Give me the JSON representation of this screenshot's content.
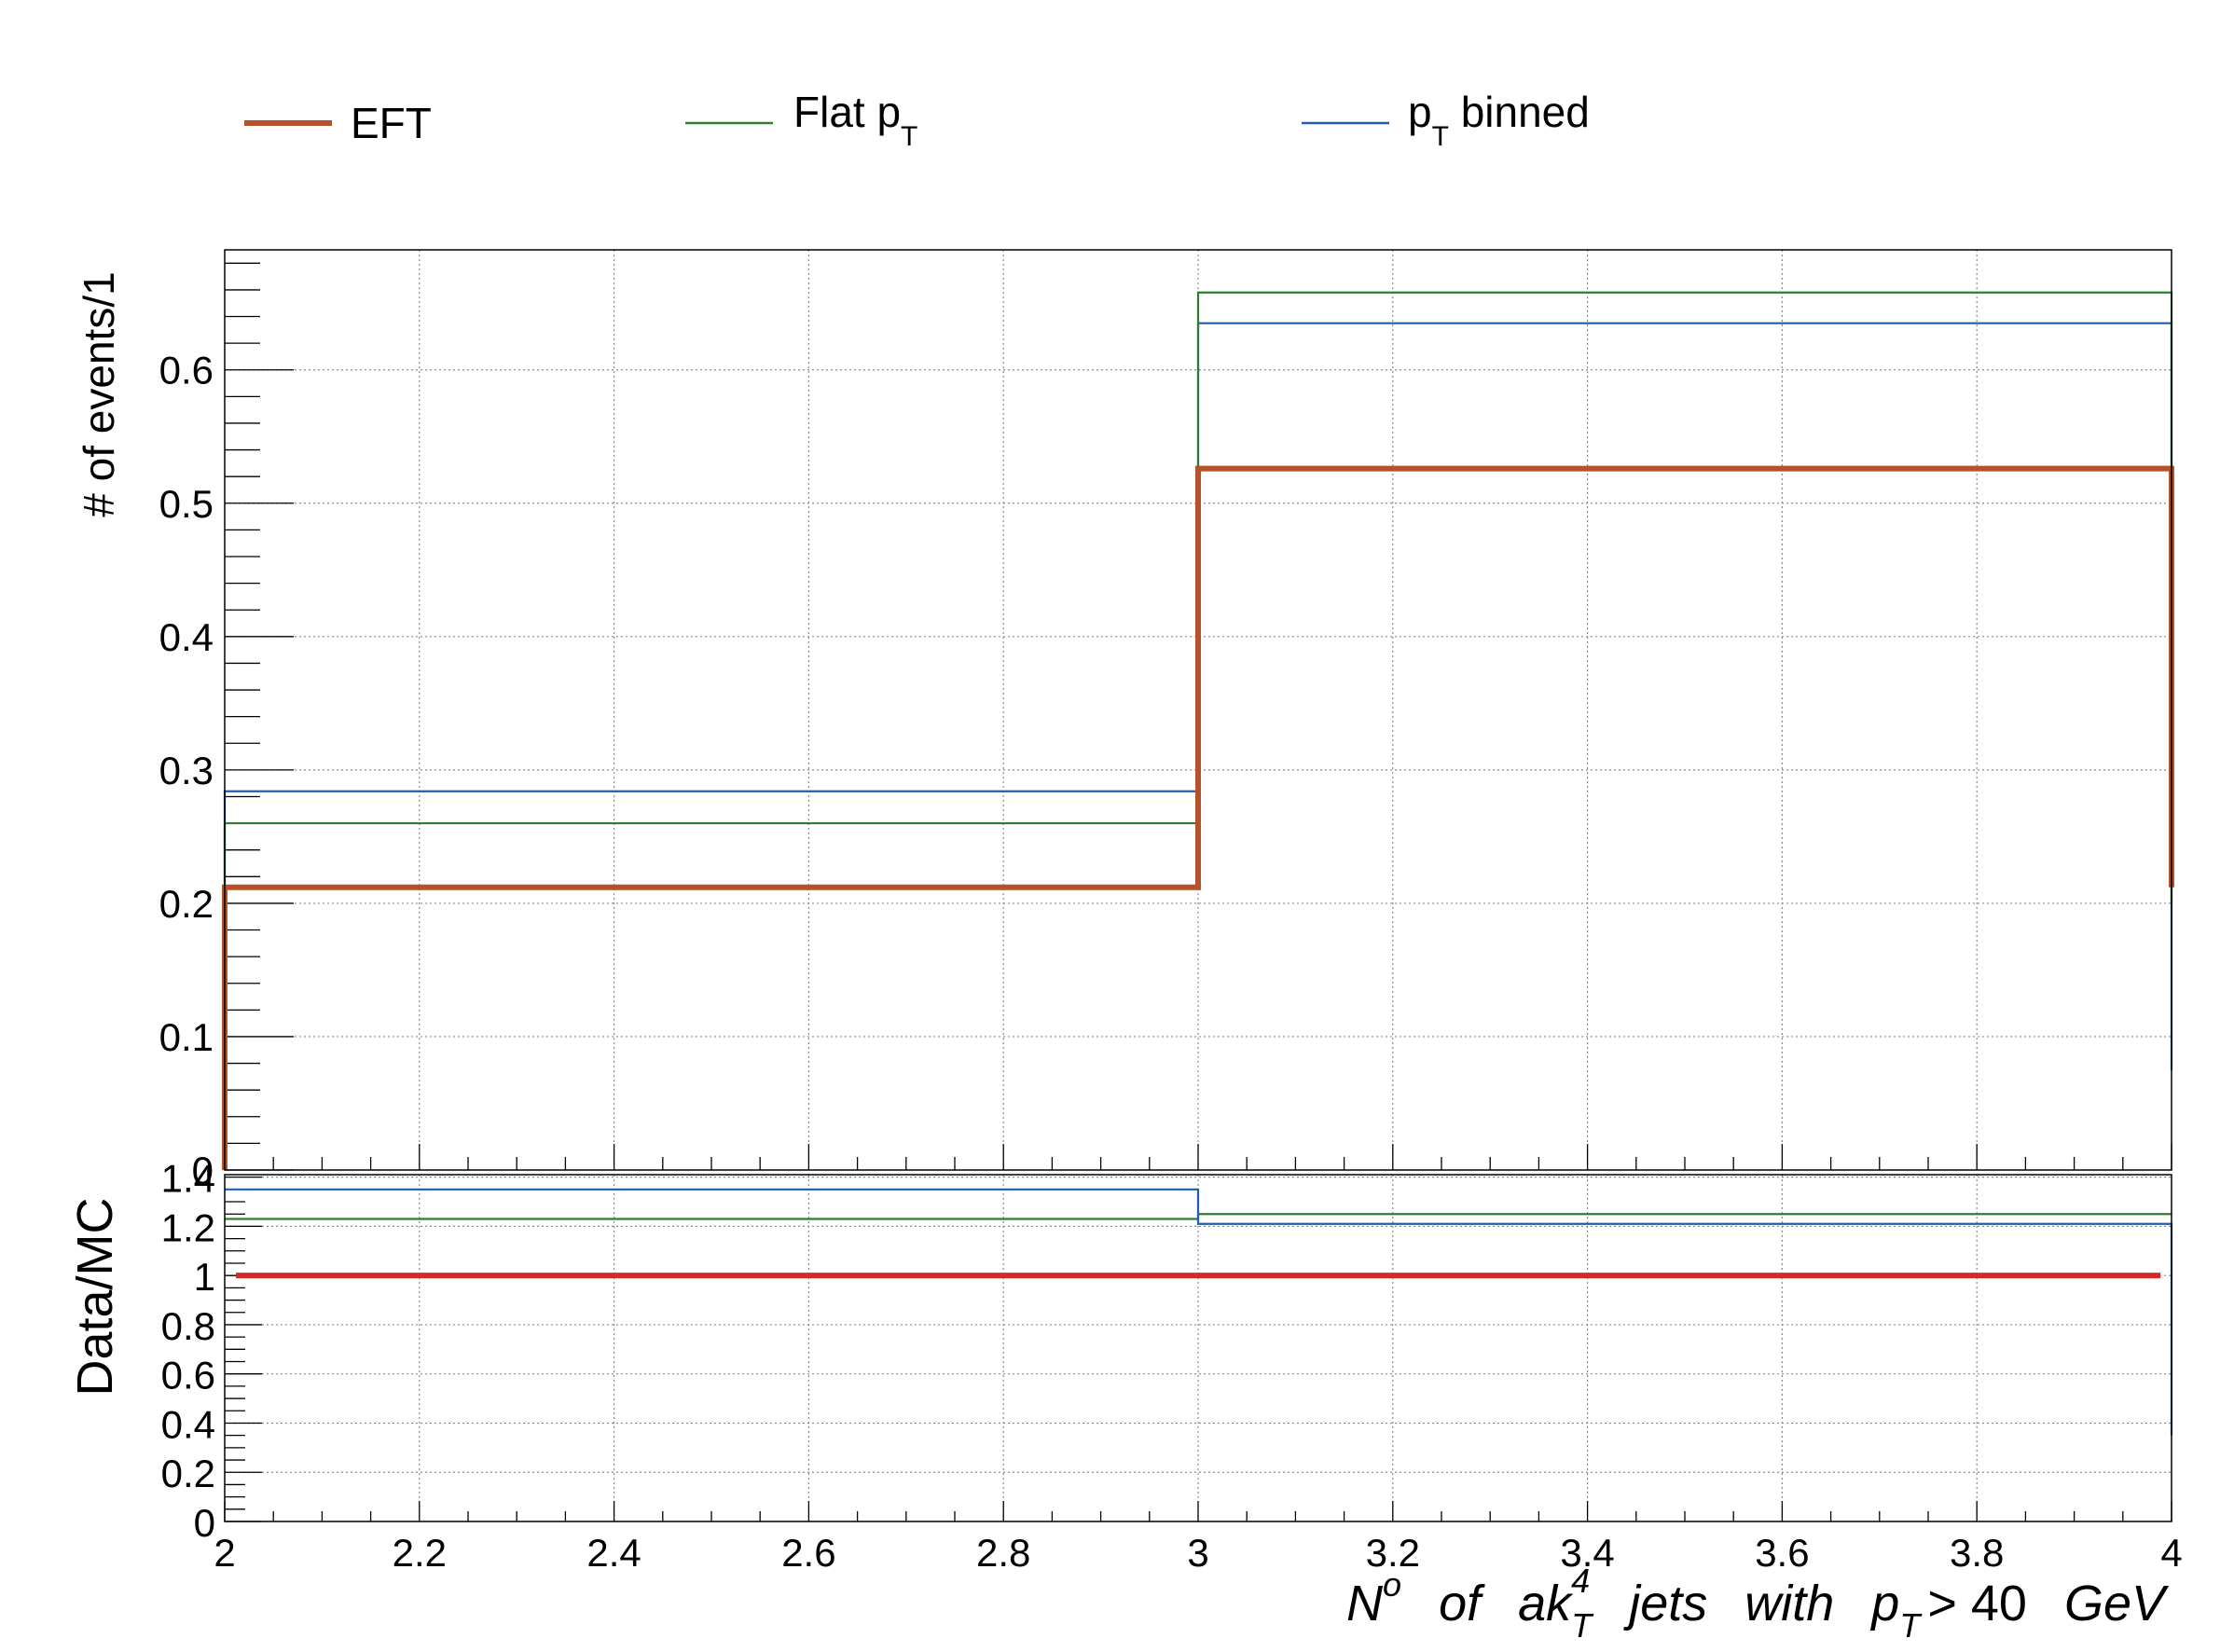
{
  "chart_data": [
    {
      "type": "line",
      "step": true,
      "panel": "main",
      "ylabel": "# of events/1",
      "xlim": [
        2,
        4
      ],
      "ylim": [
        0,
        0.69
      ],
      "yticks": [
        0.1,
        0.2,
        0.3,
        0.4,
        0.5,
        0.6
      ],
      "ytick_labels": [
        "0.1",
        "0.2",
        "0.3",
        "0.4",
        "0.5",
        "0.6"
      ],
      "origin_label": "0",
      "grid": true,
      "bin_edges": [
        2,
        3,
        4
      ],
      "series": [
        {
          "name": "EFT",
          "color": "#b5522a",
          "values": [
            0.212,
            0.526
          ]
        },
        {
          "name": "Flat pT",
          "color": "#2e7d32",
          "values": [
            0.26,
            0.658
          ]
        },
        {
          "name": "pT binned",
          "color": "#1f5fae",
          "values": [
            0.284,
            0.635
          ]
        }
      ]
    },
    {
      "type": "line",
      "step": true,
      "panel": "ratio",
      "ylabel": "Data/MC",
      "xlabel": "N^o of ak_T^4 jets with p_T > 40 GeV",
      "xlim": [
        2,
        4
      ],
      "ylim": [
        0,
        1.4
      ],
      "yticks": [
        0,
        0.2,
        0.4,
        0.6,
        0.8,
        1,
        1.2,
        1.4
      ],
      "ytick_labels": [
        "0",
        "0.2",
        "0.4",
        "0.6",
        "0.8",
        "1",
        "1.2",
        "1.4"
      ],
      "xticks": [
        2,
        2.2,
        2.4,
        2.6,
        2.8,
        3,
        3.2,
        3.4,
        3.6,
        3.8,
        4
      ],
      "xtick_labels": [
        "2",
        "2.2",
        "2.4",
        "2.6",
        "2.8",
        "3",
        "3.2",
        "3.4",
        "3.6",
        "3.8",
        "4"
      ],
      "grid": true,
      "bin_edges": [
        2,
        3,
        4
      ],
      "reference_line": {
        "value": 1,
        "color": "#d42a2a"
      },
      "series": [
        {
          "name": "Flat pT",
          "color": "#2e7d32",
          "values": [
            1.23,
            1.25
          ]
        },
        {
          "name": "pT binned",
          "color": "#1f5fae",
          "values": [
            1.35,
            1.21
          ]
        }
      ]
    }
  ],
  "legend": {
    "placement": "top",
    "entries": [
      {
        "text": "EFT",
        "sub": "",
        "suffix": "",
        "color": "#b5522a"
      },
      {
        "text": "Flat p",
        "sub": "T",
        "suffix": "",
        "color": "#2e7d32"
      },
      {
        "text": "p",
        "sub": "T",
        "suffix": " binned",
        "color": "#1f5fae"
      }
    ]
  },
  "axis_title": {
    "x_main": "N",
    "x_sup": "o",
    "x_of": "of",
    "x_ak": "ak",
    "x_ak_sup": "4",
    "x_ak_sub": "T",
    "x_jets": "jets",
    "x_with": "with",
    "x_p": "p",
    "x_p_sub": "T",
    "x_cut": "> 40",
    "x_unit": "GeV"
  }
}
